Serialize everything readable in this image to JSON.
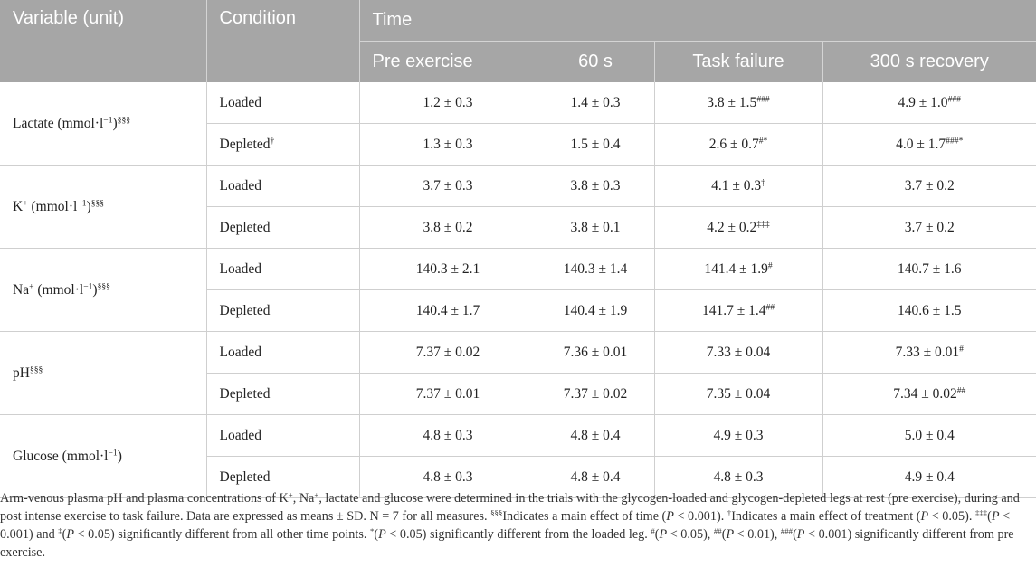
{
  "header": {
    "variable": "Variable (unit)",
    "condition": "Condition",
    "time": "Time",
    "timepoints": [
      "Pre exercise",
      "60 s",
      "Task failure",
      "300 s recovery"
    ]
  },
  "groups": [
    {
      "name": "Lactate (mmol·l",
      "name_sup": "−1",
      "name_close": ")",
      "name_suffix": "§§§",
      "rows": [
        {
          "condition": "Loaded",
          "cond_sup": "",
          "values": [
            {
              "v": "1.2 ± 0.3",
              "s": ""
            },
            {
              "v": "1.4 ± 0.3",
              "s": ""
            },
            {
              "v": "3.8 ± 1.5",
              "s": "###"
            },
            {
              "v": "4.9 ± 1.0",
              "s": "###"
            }
          ]
        },
        {
          "condition": "Depleted",
          "cond_sup": "†",
          "values": [
            {
              "v": "1.3 ± 0.3",
              "s": ""
            },
            {
              "v": "1.5 ± 0.4",
              "s": ""
            },
            {
              "v": "2.6 ± 0.7",
              "s": "#*"
            },
            {
              "v": "4.0 ± 1.7",
              "s": "###*"
            }
          ]
        }
      ]
    },
    {
      "name": "K",
      "name_plus": "+",
      "name_rest": " (mmol·l",
      "name_sup": "−1",
      "name_close": ")",
      "name_suffix": "§§§",
      "rows": [
        {
          "condition": "Loaded",
          "cond_sup": "",
          "values": [
            {
              "v": "3.7 ± 0.3",
              "s": ""
            },
            {
              "v": "3.8 ± 0.3",
              "s": ""
            },
            {
              "v": "4.1 ± 0.3",
              "s": "‡"
            },
            {
              "v": "3.7 ± 0.2",
              "s": ""
            }
          ]
        },
        {
          "condition": "Depleted",
          "cond_sup": "",
          "values": [
            {
              "v": "3.8 ± 0.2",
              "s": ""
            },
            {
              "v": "3.8 ± 0.1",
              "s": ""
            },
            {
              "v": "4.2 ± 0.2",
              "s": "‡‡‡"
            },
            {
              "v": "3.7 ± 0.2",
              "s": ""
            }
          ]
        }
      ]
    },
    {
      "name": "Na",
      "name_plus": "+",
      "name_rest": " (mmol·l",
      "name_sup": "−1",
      "name_close": ")",
      "name_suffix": "§§§",
      "rows": [
        {
          "condition": "Loaded",
          "cond_sup": "",
          "values": [
            {
              "v": "140.3 ± 2.1",
              "s": ""
            },
            {
              "v": "140.3 ± 1.4",
              "s": ""
            },
            {
              "v": "141.4 ± 1.9",
              "s": "#"
            },
            {
              "v": "140.7 ± 1.6",
              "s": ""
            }
          ]
        },
        {
          "condition": "Depleted",
          "cond_sup": "",
          "values": [
            {
              "v": "140.4 ± 1.7",
              "s": ""
            },
            {
              "v": "140.4 ± 1.9",
              "s": ""
            },
            {
              "v": "141.7 ± 1.4",
              "s": "##"
            },
            {
              "v": "140.6 ± 1.5",
              "s": ""
            }
          ]
        }
      ]
    },
    {
      "name": "pH",
      "name_suffix": "§§§",
      "rows": [
        {
          "condition": "Loaded",
          "cond_sup": "",
          "values": [
            {
              "v": "7.37 ± 0.02",
              "s": ""
            },
            {
              "v": "7.36 ± 0.01",
              "s": ""
            },
            {
              "v": "7.33 ± 0.04",
              "s": ""
            },
            {
              "v": "7.33 ± 0.01",
              "s": "#"
            }
          ]
        },
        {
          "condition": "Depleted",
          "cond_sup": "",
          "values": [
            {
              "v": "7.37 ± 0.01",
              "s": ""
            },
            {
              "v": "7.37 ± 0.02",
              "s": ""
            },
            {
              "v": "7.35 ± 0.04",
              "s": ""
            },
            {
              "v": "7.34 ± 0.02",
              "s": "##"
            }
          ]
        }
      ]
    },
    {
      "name": "Glucose (mmol·l",
      "name_sup": "−1",
      "name_close": ")",
      "name_suffix": "",
      "rows": [
        {
          "condition": "Loaded",
          "cond_sup": "",
          "values": [
            {
              "v": "4.8 ± 0.3",
              "s": ""
            },
            {
              "v": "4.8 ± 0.4",
              "s": ""
            },
            {
              "v": "4.9 ± 0.3",
              "s": ""
            },
            {
              "v": "5.0 ± 0.4",
              "s": ""
            }
          ]
        },
        {
          "condition": "Depleted",
          "cond_sup": "",
          "values": [
            {
              "v": "4.8 ± 0.3",
              "s": ""
            },
            {
              "v": "4.8 ± 0.4",
              "s": ""
            },
            {
              "v": "4.8 ± 0.3",
              "s": ""
            },
            {
              "v": "4.9 ± 0.4",
              "s": ""
            }
          ]
        }
      ]
    }
  ],
  "footnote": {
    "p1": "Arm-venous plasma pH and plasma concentrations of K",
    "p1_sup": "+",
    "p2": ", Na",
    "p2_sup": "+",
    "p3": ", lactate and glucose were determined in the trials with the glycogen-loaded and glycogen-depleted legs at rest (pre exercise), during and post intense exercise to task failure. Data are expressed as means ± SD. N = 7 for all measures. ",
    "s1": "§§§",
    "t1": "Indicates a main effect of time (",
    "t1_i": "P",
    "t1_b": " < 0.001). ",
    "s2": "†",
    "t2": "Indicates a main effect of treatment (",
    "t2_i": "P",
    "t2_b": " < 0.05). ",
    "s3": "‡‡‡",
    "t3": "(",
    "t3_i": "P",
    "t3_b": " < 0.001) and ",
    "s4": "‡",
    "t4": "(",
    "t4_i": "P",
    "t4_b": " < 0.05) significantly different from all other time points. ",
    "s5": "*",
    "t5": "(",
    "t5_i": "P",
    "t5_b": " < 0.05) significantly different from the loaded leg. ",
    "s6": "#",
    "t6": "(",
    "t6_i": "P",
    "t6_b": " < 0.05), ",
    "s7": "##",
    "t7": "(",
    "t7_i": "P",
    "t7_b": " < 0.01), ",
    "s8": "###",
    "t8": "(",
    "t8_i": "P",
    "t8_b": " < 0.001) significantly different from pre exercise."
  }
}
